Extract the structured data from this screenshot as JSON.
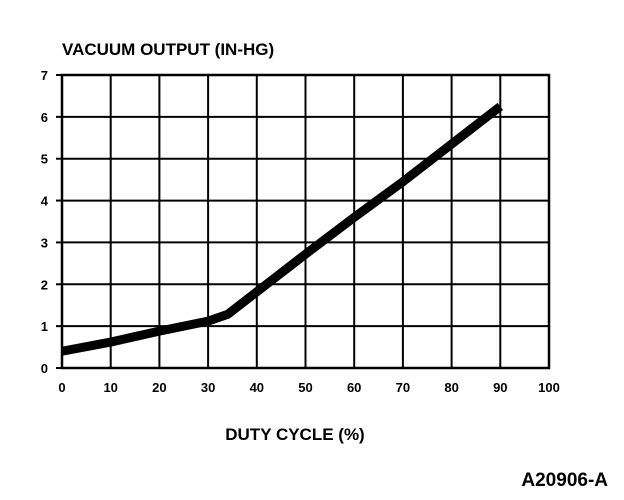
{
  "chart_data": {
    "type": "line",
    "title": "VACUUM OUTPUT (IN-HG)",
    "xlabel": "DUTY CYCLE (%)",
    "ylabel": "",
    "xlim": [
      0,
      100
    ],
    "ylim": [
      0,
      7
    ],
    "x_ticks": [
      "0",
      "10",
      "20",
      "30",
      "40",
      "50",
      "60",
      "70",
      "80",
      "90",
      "100"
    ],
    "y_ticks": [
      "0",
      "1",
      "2",
      "3",
      "4",
      "5",
      "6",
      "7"
    ],
    "grid": true,
    "series": [
      {
        "x": [
          0,
          10,
          20,
          30,
          34,
          40,
          50,
          60,
          70,
          80,
          90
        ],
        "y": [
          0.4,
          0.62,
          0.88,
          1.12,
          1.28,
          1.82,
          2.72,
          3.6,
          4.45,
          5.35,
          6.25
        ]
      }
    ]
  },
  "figure_id": "A20906-A"
}
